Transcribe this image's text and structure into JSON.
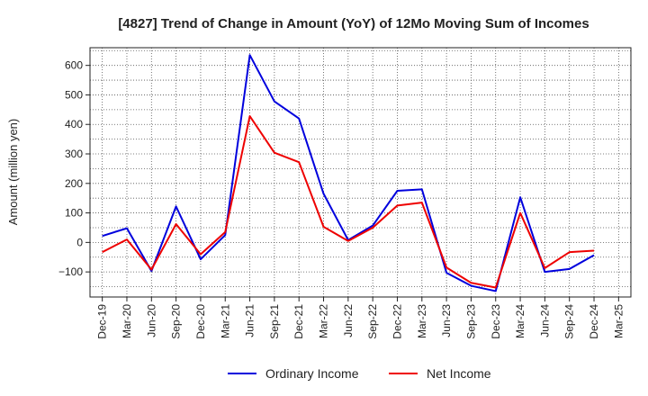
{
  "chart_data": {
    "type": "line",
    "title": "[4827]  Trend of Change in Amount (YoY) of 12Mo Moving Sum of Incomes",
    "xlabel": "",
    "ylabel": "Amount (million yen)",
    "ylim": [
      -185,
      660
    ],
    "yticks": [
      -100,
      0,
      100,
      200,
      300,
      400,
      500,
      600
    ],
    "ytick_labels": [
      "−100",
      "0",
      "100",
      "200",
      "300",
      "400",
      "500",
      "600"
    ],
    "categories": [
      "Dec-19",
      "Mar-20",
      "Jun-20",
      "Sep-20",
      "Dec-20",
      "Mar-21",
      "Jun-21",
      "Sep-21",
      "Dec-21",
      "Mar-22",
      "Jun-22",
      "Sep-22",
      "Dec-22",
      "Mar-23",
      "Jun-23",
      "Sep-23",
      "Dec-23",
      "Mar-24",
      "Jun-24",
      "Sep-24",
      "Dec-24",
      "Mar-25"
    ],
    "grid": true,
    "legend_position": "bottom",
    "series": [
      {
        "name": "Ordinary Income",
        "color": "#0000dd",
        "values": [
          22,
          48,
          -97,
          122,
          -57,
          25,
          635,
          478,
          420,
          165,
          8,
          57,
          175,
          180,
          -103,
          -147,
          -165,
          153,
          -100,
          -90,
          -43,
          null
        ]
      },
      {
        "name": "Net Income",
        "color": "#ee0000",
        "values": [
          -33,
          10,
          -92,
          62,
          -40,
          35,
          428,
          304,
          272,
          53,
          5,
          50,
          125,
          135,
          -85,
          -137,
          -153,
          100,
          -87,
          -33,
          -28,
          null
        ]
      }
    ]
  }
}
